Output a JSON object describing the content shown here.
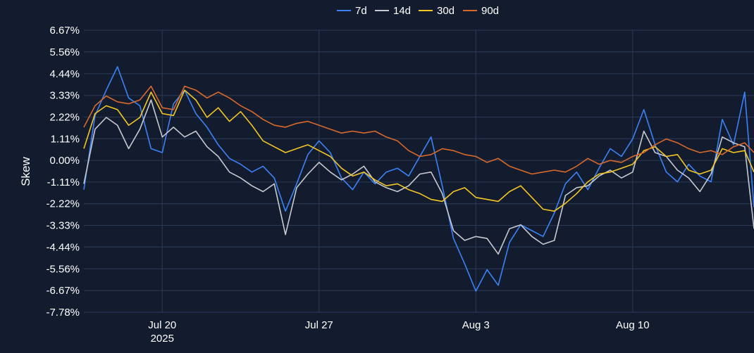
{
  "chart_data": {
    "type": "line",
    "ylabel": "Skew",
    "x_ticks": [
      {
        "date": "2025-07-20",
        "label": "Jul 20",
        "sublabel": "2025"
      },
      {
        "date": "2025-07-27",
        "label": "Jul 27",
        "sublabel": ""
      },
      {
        "date": "2025-08-03",
        "label": "Aug 3",
        "sublabel": ""
      },
      {
        "date": "2025-08-10",
        "label": "Aug 10",
        "sublabel": ""
      }
    ],
    "x_range": [
      "2025-07-16T12:00",
      "2025-08-15T10:00"
    ],
    "y_range": [
      -7.78,
      6.67
    ],
    "y_ticks": [
      {
        "value": 6.67,
        "label": "6.67%"
      },
      {
        "value": 5.56,
        "label": "5.56%"
      },
      {
        "value": 4.44,
        "label": "4.44%"
      },
      {
        "value": 3.33,
        "label": "3.33%"
      },
      {
        "value": 2.22,
        "label": "2.22%"
      },
      {
        "value": 1.11,
        "label": "1.11%"
      },
      {
        "value": 0.0,
        "label": "0.00%"
      },
      {
        "value": -1.11,
        "label": "-1.11%"
      },
      {
        "value": -2.22,
        "label": "-2.22%"
      },
      {
        "value": -3.33,
        "label": "-3.33%"
      },
      {
        "value": -4.44,
        "label": "-4.44%"
      },
      {
        "value": -5.56,
        "label": "-5.56%"
      },
      {
        "value": -6.67,
        "label": "-6.67%"
      },
      {
        "value": -7.78,
        "label": "-7.78%"
      }
    ],
    "grid": true,
    "legend_position": "top-center",
    "series": [
      {
        "name": "7d",
        "color": "#3b82f6",
        "points": [
          [
            "2025-07-16T12:00",
            -1.5
          ],
          [
            "2025-07-17T00:00",
            2.3
          ],
          [
            "2025-07-17T12:00",
            3.6
          ],
          [
            "2025-07-18T00:00",
            4.8
          ],
          [
            "2025-07-18T12:00",
            3.2
          ],
          [
            "2025-07-19T00:00",
            2.8
          ],
          [
            "2025-07-19T12:00",
            0.6
          ],
          [
            "2025-07-20T00:00",
            0.4
          ],
          [
            "2025-07-20T12:00",
            2.9
          ],
          [
            "2025-07-21T00:00",
            3.6
          ],
          [
            "2025-07-21T12:00",
            2.4
          ],
          [
            "2025-07-22T00:00",
            1.7
          ],
          [
            "2025-07-22T12:00",
            0.8
          ],
          [
            "2025-07-23T00:00",
            0.1
          ],
          [
            "2025-07-23T12:00",
            -0.2
          ],
          [
            "2025-07-24T00:00",
            -0.6
          ],
          [
            "2025-07-24T12:00",
            -0.3
          ],
          [
            "2025-07-25T00:00",
            -0.9
          ],
          [
            "2025-07-25T12:00",
            -2.6
          ],
          [
            "2025-07-26T00:00",
            -1.2
          ],
          [
            "2025-07-26T12:00",
            0.3
          ],
          [
            "2025-07-27T00:00",
            1.0
          ],
          [
            "2025-07-27T12:00",
            0.4
          ],
          [
            "2025-07-28T00:00",
            -0.9
          ],
          [
            "2025-07-28T12:00",
            -1.5
          ],
          [
            "2025-07-29T00:00",
            -0.6
          ],
          [
            "2025-07-29T12:00",
            -1.2
          ],
          [
            "2025-07-30T00:00",
            -0.6
          ],
          [
            "2025-07-30T12:00",
            -0.4
          ],
          [
            "2025-07-31T00:00",
            -0.8
          ],
          [
            "2025-07-31T12:00",
            0.2
          ],
          [
            "2025-08-01T00:00",
            1.2
          ],
          [
            "2025-08-01T12:00",
            -1.3
          ],
          [
            "2025-08-02T00:00",
            -4.0
          ],
          [
            "2025-08-02T12:00",
            -5.3
          ],
          [
            "2025-08-03T00:00",
            -6.7
          ],
          [
            "2025-08-03T12:00",
            -5.6
          ],
          [
            "2025-08-04T00:00",
            -6.4
          ],
          [
            "2025-08-04T12:00",
            -4.2
          ],
          [
            "2025-08-05T00:00",
            -3.3
          ],
          [
            "2025-08-05T12:00",
            -3.6
          ],
          [
            "2025-08-06T00:00",
            -3.9
          ],
          [
            "2025-08-06T12:00",
            -2.7
          ],
          [
            "2025-08-07T00:00",
            -1.2
          ],
          [
            "2025-08-07T12:00",
            -0.6
          ],
          [
            "2025-08-08T00:00",
            -1.5
          ],
          [
            "2025-08-08T12:00",
            -0.4
          ],
          [
            "2025-08-09T00:00",
            0.6
          ],
          [
            "2025-08-09T12:00",
            0.2
          ],
          [
            "2025-08-10T00:00",
            1.1
          ],
          [
            "2025-08-10T12:00",
            2.6
          ],
          [
            "2025-08-11T00:00",
            0.8
          ],
          [
            "2025-08-11T12:00",
            -0.6
          ],
          [
            "2025-08-12T00:00",
            -1.1
          ],
          [
            "2025-08-12T12:00",
            -0.2
          ],
          [
            "2025-08-13T00:00",
            -0.8
          ],
          [
            "2025-08-13T12:00",
            -1.1
          ],
          [
            "2025-08-14T00:00",
            2.1
          ],
          [
            "2025-08-14T12:00",
            0.8
          ],
          [
            "2025-08-15T00:00",
            3.5
          ],
          [
            "2025-08-15T10:00",
            -2.4
          ]
        ]
      },
      {
        "name": "14d",
        "color": "#c7c9d1",
        "points": [
          [
            "2025-07-16T12:00",
            -1.2
          ],
          [
            "2025-07-17T00:00",
            1.6
          ],
          [
            "2025-07-17T12:00",
            2.2
          ],
          [
            "2025-07-18T00:00",
            1.8
          ],
          [
            "2025-07-18T12:00",
            0.6
          ],
          [
            "2025-07-19T00:00",
            1.6
          ],
          [
            "2025-07-19T12:00",
            3.1
          ],
          [
            "2025-07-20T00:00",
            1.2
          ],
          [
            "2025-07-20T12:00",
            1.7
          ],
          [
            "2025-07-21T00:00",
            1.2
          ],
          [
            "2025-07-21T12:00",
            1.5
          ],
          [
            "2025-07-22T00:00",
            0.7
          ],
          [
            "2025-07-22T12:00",
            0.2
          ],
          [
            "2025-07-23T00:00",
            -0.6
          ],
          [
            "2025-07-23T12:00",
            -0.9
          ],
          [
            "2025-07-24T00:00",
            -1.3
          ],
          [
            "2025-07-24T12:00",
            -1.6
          ],
          [
            "2025-07-25T00:00",
            -1.2
          ],
          [
            "2025-07-25T12:00",
            -3.8
          ],
          [
            "2025-07-26T00:00",
            -1.4
          ],
          [
            "2025-07-26T12:00",
            -0.7
          ],
          [
            "2025-07-27T00:00",
            -0.1
          ],
          [
            "2025-07-27T12:00",
            -0.6
          ],
          [
            "2025-07-28T00:00",
            -1.0
          ],
          [
            "2025-07-28T12:00",
            -0.7
          ],
          [
            "2025-07-29T00:00",
            -0.3
          ],
          [
            "2025-07-29T12:00",
            -1.1
          ],
          [
            "2025-07-30T00:00",
            -1.4
          ],
          [
            "2025-07-30T12:00",
            -1.6
          ],
          [
            "2025-07-31T00:00",
            -1.3
          ],
          [
            "2025-07-31T12:00",
            -0.7
          ],
          [
            "2025-08-01T00:00",
            -0.6
          ],
          [
            "2025-08-01T12:00",
            -1.7
          ],
          [
            "2025-08-02T00:00",
            -3.6
          ],
          [
            "2025-08-02T12:00",
            -4.1
          ],
          [
            "2025-08-03T00:00",
            -3.9
          ],
          [
            "2025-08-03T12:00",
            -4.0
          ],
          [
            "2025-08-04T00:00",
            -4.8
          ],
          [
            "2025-08-04T12:00",
            -3.5
          ],
          [
            "2025-08-05T00:00",
            -3.3
          ],
          [
            "2025-08-05T12:00",
            -3.9
          ],
          [
            "2025-08-06T00:00",
            -4.3
          ],
          [
            "2025-08-06T12:00",
            -4.1
          ],
          [
            "2025-08-07T00:00",
            -1.8
          ],
          [
            "2025-08-07T12:00",
            -1.4
          ],
          [
            "2025-08-08T00:00",
            -1.3
          ],
          [
            "2025-08-08T12:00",
            -0.8
          ],
          [
            "2025-08-09T00:00",
            -0.5
          ],
          [
            "2025-08-09T12:00",
            -0.9
          ],
          [
            "2025-08-10T00:00",
            -0.6
          ],
          [
            "2025-08-10T12:00",
            1.5
          ],
          [
            "2025-08-11T00:00",
            0.4
          ],
          [
            "2025-08-11T12:00",
            0.2
          ],
          [
            "2025-08-12T00:00",
            -0.5
          ],
          [
            "2025-08-12T12:00",
            -0.9
          ],
          [
            "2025-08-13T00:00",
            -1.6
          ],
          [
            "2025-08-13T12:00",
            -0.7
          ],
          [
            "2025-08-14T00:00",
            1.2
          ],
          [
            "2025-08-14T12:00",
            0.9
          ],
          [
            "2025-08-15T00:00",
            0.7
          ],
          [
            "2025-08-15T10:00",
            -3.5
          ]
        ]
      },
      {
        "name": "30d",
        "color": "#f3c623",
        "points": [
          [
            "2025-07-16T12:00",
            0.6
          ],
          [
            "2025-07-17T00:00",
            2.4
          ],
          [
            "2025-07-17T12:00",
            2.8
          ],
          [
            "2025-07-18T00:00",
            2.6
          ],
          [
            "2025-07-18T12:00",
            1.8
          ],
          [
            "2025-07-19T00:00",
            2.2
          ],
          [
            "2025-07-19T12:00",
            3.5
          ],
          [
            "2025-07-20T00:00",
            2.4
          ],
          [
            "2025-07-20T12:00",
            2.3
          ],
          [
            "2025-07-21T00:00",
            3.6
          ],
          [
            "2025-07-21T12:00",
            3.1
          ],
          [
            "2025-07-22T00:00",
            2.2
          ],
          [
            "2025-07-22T12:00",
            2.7
          ],
          [
            "2025-07-23T00:00",
            2.0
          ],
          [
            "2025-07-23T12:00",
            2.5
          ],
          [
            "2025-07-24T00:00",
            1.8
          ],
          [
            "2025-07-24T12:00",
            1.0
          ],
          [
            "2025-07-25T00:00",
            0.7
          ],
          [
            "2025-07-25T12:00",
            0.4
          ],
          [
            "2025-07-26T00:00",
            0.6
          ],
          [
            "2025-07-26T12:00",
            0.8
          ],
          [
            "2025-07-27T00:00",
            0.5
          ],
          [
            "2025-07-27T12:00",
            0.2
          ],
          [
            "2025-07-28T00:00",
            -0.4
          ],
          [
            "2025-07-28T12:00",
            -0.8
          ],
          [
            "2025-07-29T00:00",
            -0.6
          ],
          [
            "2025-07-29T12:00",
            -1.0
          ],
          [
            "2025-07-30T00:00",
            -1.3
          ],
          [
            "2025-07-30T12:00",
            -1.2
          ],
          [
            "2025-07-31T00:00",
            -1.5
          ],
          [
            "2025-07-31T12:00",
            -1.7
          ],
          [
            "2025-08-01T00:00",
            -2.0
          ],
          [
            "2025-08-01T12:00",
            -2.1
          ],
          [
            "2025-08-02T00:00",
            -1.6
          ],
          [
            "2025-08-02T12:00",
            -1.4
          ],
          [
            "2025-08-03T00:00",
            -1.9
          ],
          [
            "2025-08-03T12:00",
            -2.0
          ],
          [
            "2025-08-04T00:00",
            -2.1
          ],
          [
            "2025-08-04T12:00",
            -1.6
          ],
          [
            "2025-08-05T00:00",
            -1.3
          ],
          [
            "2025-08-05T12:00",
            -1.9
          ],
          [
            "2025-08-06T00:00",
            -2.5
          ],
          [
            "2025-08-06T12:00",
            -2.6
          ],
          [
            "2025-08-07T00:00",
            -2.2
          ],
          [
            "2025-08-07T12:00",
            -1.7
          ],
          [
            "2025-08-08T00:00",
            -1.1
          ],
          [
            "2025-08-08T12:00",
            -0.7
          ],
          [
            "2025-08-09T00:00",
            -0.6
          ],
          [
            "2025-08-09T12:00",
            -0.4
          ],
          [
            "2025-08-10T00:00",
            -0.2
          ],
          [
            "2025-08-10T12:00",
            0.5
          ],
          [
            "2025-08-11T00:00",
            0.7
          ],
          [
            "2025-08-11T12:00",
            0.2
          ],
          [
            "2025-08-12T00:00",
            0.3
          ],
          [
            "2025-08-12T12:00",
            -0.5
          ],
          [
            "2025-08-13T00:00",
            -0.7
          ],
          [
            "2025-08-13T12:00",
            -0.5
          ],
          [
            "2025-08-14T00:00",
            0.6
          ],
          [
            "2025-08-14T12:00",
            0.4
          ],
          [
            "2025-08-15T00:00",
            0.5
          ],
          [
            "2025-08-15T10:00",
            -0.6
          ]
        ]
      },
      {
        "name": "90d",
        "color": "#d9692a",
        "points": [
          [
            "2025-07-16T12:00",
            1.7
          ],
          [
            "2025-07-17T00:00",
            2.8
          ],
          [
            "2025-07-17T12:00",
            3.3
          ],
          [
            "2025-07-18T00:00",
            3.0
          ],
          [
            "2025-07-18T12:00",
            2.9
          ],
          [
            "2025-07-19T00:00",
            3.1
          ],
          [
            "2025-07-19T12:00",
            3.8
          ],
          [
            "2025-07-20T00:00",
            2.7
          ],
          [
            "2025-07-20T12:00",
            2.6
          ],
          [
            "2025-07-21T00:00",
            3.8
          ],
          [
            "2025-07-21T12:00",
            3.6
          ],
          [
            "2025-07-22T00:00",
            3.2
          ],
          [
            "2025-07-22T12:00",
            3.5
          ],
          [
            "2025-07-23T00:00",
            3.2
          ],
          [
            "2025-07-23T12:00",
            2.8
          ],
          [
            "2025-07-24T00:00",
            2.5
          ],
          [
            "2025-07-24T12:00",
            2.1
          ],
          [
            "2025-07-25T00:00",
            1.8
          ],
          [
            "2025-07-25T12:00",
            1.7
          ],
          [
            "2025-07-26T00:00",
            1.9
          ],
          [
            "2025-07-26T12:00",
            2.0
          ],
          [
            "2025-07-27T00:00",
            1.8
          ],
          [
            "2025-07-27T12:00",
            1.6
          ],
          [
            "2025-07-28T00:00",
            1.4
          ],
          [
            "2025-07-28T12:00",
            1.5
          ],
          [
            "2025-07-29T00:00",
            1.4
          ],
          [
            "2025-07-29T12:00",
            1.5
          ],
          [
            "2025-07-30T00:00",
            1.2
          ],
          [
            "2025-07-30T12:00",
            1.0
          ],
          [
            "2025-07-31T00:00",
            0.5
          ],
          [
            "2025-07-31T12:00",
            0.2
          ],
          [
            "2025-08-01T00:00",
            0.3
          ],
          [
            "2025-08-01T12:00",
            0.6
          ],
          [
            "2025-08-02T00:00",
            0.5
          ],
          [
            "2025-08-02T12:00",
            0.3
          ],
          [
            "2025-08-03T00:00",
            0.2
          ],
          [
            "2025-08-03T12:00",
            -0.1
          ],
          [
            "2025-08-04T00:00",
            0.1
          ],
          [
            "2025-08-04T12:00",
            -0.3
          ],
          [
            "2025-08-05T00:00",
            -0.5
          ],
          [
            "2025-08-05T12:00",
            -0.7
          ],
          [
            "2025-08-06T00:00",
            -0.6
          ],
          [
            "2025-08-06T12:00",
            -0.5
          ],
          [
            "2025-08-07T00:00",
            -0.6
          ],
          [
            "2025-08-07T12:00",
            -0.3
          ],
          [
            "2025-08-08T00:00",
            0.1
          ],
          [
            "2025-08-08T12:00",
            -0.2
          ],
          [
            "2025-08-09T00:00",
            0.0
          ],
          [
            "2025-08-09T12:00",
            -0.1
          ],
          [
            "2025-08-10T00:00",
            0.2
          ],
          [
            "2025-08-10T12:00",
            0.4
          ],
          [
            "2025-08-11T00:00",
            0.8
          ],
          [
            "2025-08-11T12:00",
            1.1
          ],
          [
            "2025-08-12T00:00",
            0.9
          ],
          [
            "2025-08-12T12:00",
            0.6
          ],
          [
            "2025-08-13T00:00",
            0.4
          ],
          [
            "2025-08-13T12:00",
            0.5
          ],
          [
            "2025-08-14T00:00",
            0.3
          ],
          [
            "2025-08-14T12:00",
            0.7
          ],
          [
            "2025-08-15T00:00",
            0.9
          ],
          [
            "2025-08-15T10:00",
            0.4
          ]
        ]
      }
    ]
  }
}
